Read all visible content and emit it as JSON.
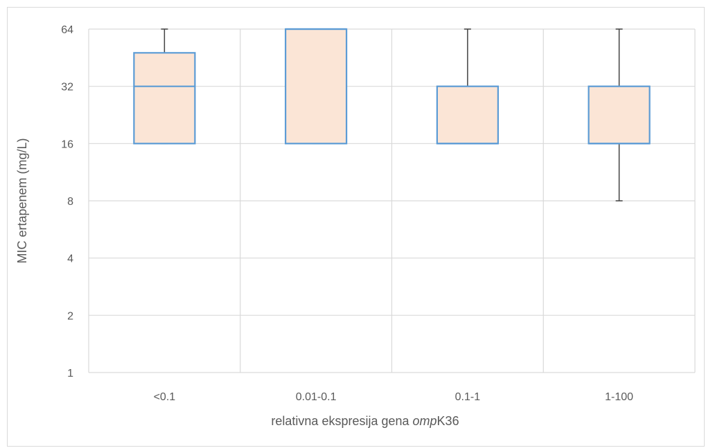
{
  "chart_data": {
    "type": "boxplot",
    "xlabel_prefix": "relativna ekspresija gena ",
    "xlabel_italic": "omp",
    "xlabel_suffix": "K36",
    "ylabel": "MIC ertapenem (mg/L)",
    "yscale": "log2",
    "ylim": [
      1,
      64
    ],
    "yticks": [
      "1",
      "2",
      "4",
      "8",
      "16",
      "32",
      "64"
    ],
    "grid": true,
    "categories": [
      "<0.1",
      "0.01-0.1",
      "0.1-1",
      "1-100"
    ],
    "boxes": [
      {
        "min": 16,
        "q1": 16,
        "median": 32,
        "q3": 48,
        "max": 64
      },
      {
        "min": 16,
        "q1": 16,
        "median": 64,
        "q3": 64,
        "max": 64
      },
      {
        "min": 16,
        "q1": 16,
        "median": 16,
        "q3": 32,
        "max": 64
      },
      {
        "min": 8,
        "q1": 16,
        "median": 16,
        "q3": 32,
        "max": 64
      }
    ],
    "colors": {
      "box_fill": "#FBE5D6",
      "box_stroke": "#5B9BD5",
      "whisker": "#404040",
      "grid": "#D9D9D9"
    }
  }
}
